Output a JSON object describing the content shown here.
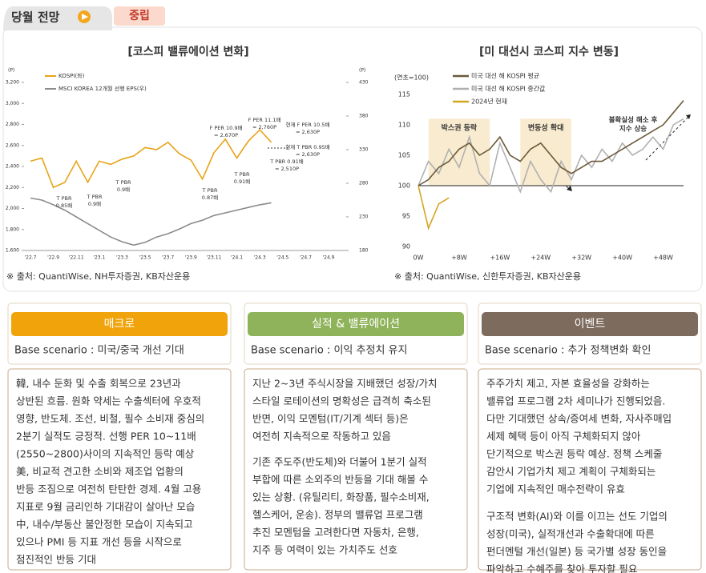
{
  "header": {
    "tab": "당월 전망",
    "badge": "중립"
  },
  "chart_data": [
    {
      "type": "line",
      "title": "[코스피 밸류에이션 변화]",
      "y_label": "(P)",
      "y2_label": "(P)",
      "categories": [
        "'22.7",
        null,
        "'22.9",
        null,
        "'22.11",
        null,
        "'23.1",
        null,
        "'23.3",
        null,
        "'23.5",
        null,
        "'23.7",
        null,
        "'23.9",
        null,
        "'23.11",
        null,
        "'24.1",
        null,
        "'24.3",
        null,
        "'24.5",
        null,
        "'24.7",
        null,
        "'24.9"
      ],
      "series": [
        {
          "name": "KOSPI(좌)",
          "color": "#e8a317",
          "values": [
            2450,
            2480,
            2200,
            2250,
            2450,
            2250,
            2450,
            2420,
            2470,
            2500,
            2580,
            2560,
            2630,
            2520,
            2460,
            2280,
            2530,
            2660,
            2480,
            2640,
            2750,
            2630,
            null,
            null,
            null,
            null,
            null
          ]
        },
        {
          "name": "MSCI KOREA 12개월 선행 EPS(우)",
          "color": "#8c8c8c",
          "axis": "y2",
          "values": [
            258,
            255,
            248,
            240,
            230,
            220,
            210,
            200,
            193,
            188,
            192,
            200,
            205,
            212,
            220,
            225,
            232,
            236,
            240,
            244,
            248,
            251,
            null,
            null,
            null,
            null,
            null
          ]
        }
      ],
      "ylim": [
        1600,
        3200
      ],
      "yticks": [
        {
          "value": 1600,
          "label": "1,600"
        },
        {
          "value": 1800,
          "label": "1,800"
        },
        {
          "value": 2000,
          "label": "2,000"
        },
        {
          "value": 2200,
          "label": "2,200"
        },
        {
          "value": 2400,
          "label": "2,400"
        },
        {
          "value": 2600,
          "label": "2,600"
        },
        {
          "value": 2800,
          "label": "2,800"
        },
        {
          "value": 3000,
          "label": "3,000"
        },
        {
          "value": 3200,
          "label": "3,200"
        }
      ],
      "y2lim": [
        180,
        430
      ],
      "y2ticks": [
        180,
        230,
        280,
        330,
        380,
        430
      ],
      "annotations": [
        [
          "T PBR",
          "0.85배"
        ],
        [
          "T PBR",
          "0.9배"
        ],
        [
          "T PBR",
          "0.9배"
        ],
        [
          "T PBR",
          "0.87배"
        ],
        [
          "T PBR",
          "0.91배"
        ],
        [
          "F PER 10.9배",
          "= 2,670P"
        ],
        [
          "F PER 11.1배",
          "= 2,760P"
        ],
        [
          "현재 F PER 10.5배",
          "= 2,630P"
        ],
        [
          "현재 T PBR 0.95배",
          "= 2,630P"
        ],
        [
          "T PBR 0.91배",
          "= 2,510P"
        ]
      ],
      "source": "※ 출처: QuantiWise, NH투자증권, KB자산운용"
    },
    {
      "type": "line",
      "title": "[미 대선시 코스피 지수 변동]",
      "y_label": "(연초=100)",
      "x": [
        0,
        2,
        4,
        6,
        8,
        10,
        12,
        14,
        16,
        18,
        20,
        22,
        24,
        26,
        28,
        30,
        32,
        34,
        36,
        38,
        40,
        42,
        44,
        46,
        48,
        50,
        52
      ],
      "series": [
        {
          "name": "미국 대선 해 KOSPI 평균",
          "color": "#6b5a3a",
          "values": [
            100,
            101,
            103,
            104,
            106,
            107,
            105,
            106,
            108,
            105,
            104,
            106,
            107,
            105,
            103,
            102,
            103,
            104,
            104,
            105,
            106,
            107,
            108,
            109,
            110,
            112,
            114
          ]
        },
        {
          "name": "미국 대선 해 KOSPI 중간값",
          "color": "#b0b0b0",
          "values": [
            100,
            104,
            102,
            106,
            103,
            108,
            102,
            100,
            107,
            103,
            99,
            104,
            101,
            99,
            104,
            101,
            105,
            103,
            106,
            104,
            107,
            105,
            106,
            108,
            106,
            110,
            111
          ]
        },
        {
          "name": "2024년 현재",
          "color": "#d4a520",
          "values": [
            100,
            93,
            97,
            98,
            null,
            null,
            null,
            null,
            null,
            null,
            null,
            null,
            null,
            null,
            null,
            null,
            null,
            null,
            null,
            null,
            null,
            null,
            null,
            null,
            null,
            null,
            null
          ]
        }
      ],
      "xlim": [
        0,
        52
      ],
      "xticks": [
        {
          "value": 0,
          "label": "0W"
        },
        {
          "value": 8,
          "label": "+8W"
        },
        {
          "value": 16,
          "label": "+16W"
        },
        {
          "value": 24,
          "label": "+24W"
        },
        {
          "value": 32,
          "label": "+32W"
        },
        {
          "value": 40,
          "label": "+40W"
        },
        {
          "value": 48,
          "label": "+48W"
        }
      ],
      "ylim": [
        90,
        115
      ],
      "yticks": [
        90,
        95,
        100,
        105,
        110,
        115
      ],
      "bands": [
        {
          "from": 2,
          "to": 14,
          "label": "박스권 등락"
        },
        {
          "from": 20,
          "to": 30,
          "label": "변동성 확대"
        }
      ],
      "annotation": [
        "불확실성 해소 후",
        "지수 상승"
      ],
      "source": "※ 출처: QuantiWise, 신한투자증권, KB자산운용"
    }
  ],
  "cards": [
    {
      "title": "매크로",
      "scenario": "Base scenario : 미국/중국 개선 기대",
      "paragraphs": [
        [
          "韓, 내수 둔화 및 수출 회복으로 23년과",
          "상반된 흐름. 원화 약세는 수출섹터에 우호적",
          "영향, 반도체. 조선, 비철, 필수 소비재 중심의",
          "2분기 실적도 긍정적. 선행 PER 10~11배",
          "(2550~2800)사이의 지속적인 등락 예상"
        ],
        [
          "美, 비교적 견고한 소비와 제조업 업황의",
          "반등 조짐으로 여전히 탄탄한 경제. 4월 고용",
          "지표로 9월 금리인하 기대감이 살아난 모습"
        ],
        [
          "中, 내수/부동산 불안정한 모습이 지속되고",
          "있으나 PMI 등 지표 개선 등을 시작으로",
          "점진적인 반등 기대"
        ]
      ]
    },
    {
      "title": "실적 & 밸류에이션",
      "scenario": "Base scenario : 이익 추정치 유지",
      "paragraphs": [
        [
          "지난 2~3년 주식시장을 지배했던 성장/가치",
          "스타일 로테이션의 명확성은 급격히 축소된",
          "반면, 이익 모멘텀(IT/기계 섹터 등)은",
          "여전히 지속적으로 작동하고 있음"
        ],
        [
          "기존 주도주(반도체)와 더불어 1분기 실적",
          "부합에 따른 소외주의 반등을 기대 해볼 수",
          "있는 상황. (유틸리티, 화장품, 필수소비재,",
          "헬스케어, 운송). 정부의 밸류업 프로그램",
          "추진 모멘텀을 고려한다면 자동차, 은행,",
          "지주 등 여력이 있는 가치주도 선호"
        ]
      ]
    },
    {
      "title": "이벤트",
      "scenario": "Base scenario : 추가 정책변화 확인",
      "paragraphs": [
        [
          "주주가치 제고, 자본 효율성을 강화하는",
          "밸류업 프로그램 2차 세미나가 진행되었음.",
          "다만 기대했던 상속/증여세 변화, 자사주매입",
          "세제 혜택 등이 아직 구체화되지 않아",
          "단기적으로 박스권 등락 예상. 정책 스케줄",
          "감안시 기업가치 제고 계획이 구체화되는",
          "기업에 지속적인 매수전략이 유효"
        ],
        [
          "구조적 변화(AI)와 이를 이끄는 선도 기업의",
          "성장(미국), 실적개선과 수출확대에 따른",
          "펀더멘털 개선(일본) 등 국가별 성장 동인을",
          "파악하고 수혜주를 찾아 투자할 필요"
        ]
      ]
    }
  ]
}
